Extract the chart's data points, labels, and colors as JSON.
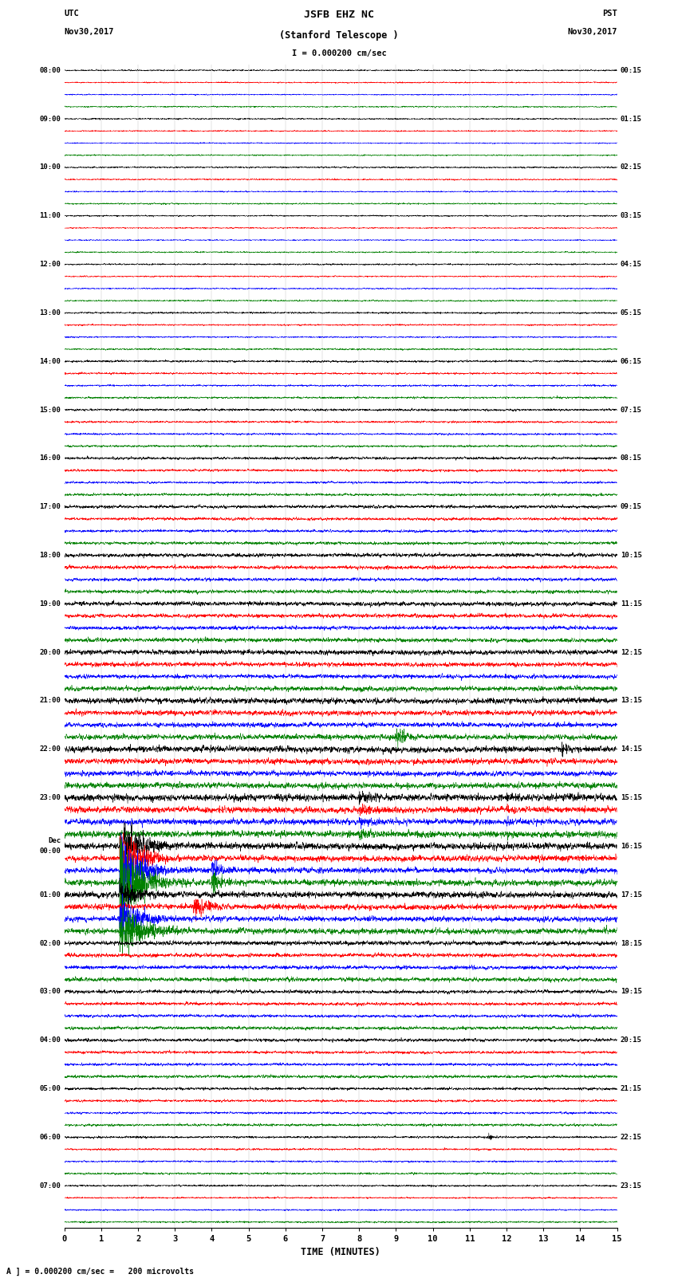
{
  "title_line1": "JSFB EHZ NC",
  "title_line2": "(Stanford Telescope )",
  "title_line3": "I = 0.000200 cm/sec",
  "left_label_top": "UTC",
  "left_label_date": "Nov30,2017",
  "right_label_top": "PST",
  "right_label_date": "Nov30,2017",
  "xlabel": "TIME (MINUTES)",
  "footer": "A ] = 0.000200 cm/sec =   200 microvolts",
  "colors": [
    "black",
    "red",
    "blue",
    "green"
  ],
  "utc_times": [
    "08:00",
    "09:00",
    "10:00",
    "11:00",
    "12:00",
    "13:00",
    "14:00",
    "15:00",
    "16:00",
    "17:00",
    "18:00",
    "19:00",
    "20:00",
    "21:00",
    "22:00",
    "23:00",
    "Dec\n00:00",
    "01:00",
    "02:00",
    "03:00",
    "04:00",
    "05:00",
    "06:00",
    "07:00"
  ],
  "pst_times": [
    "00:15",
    "01:15",
    "02:15",
    "03:15",
    "04:15",
    "05:15",
    "06:15",
    "07:15",
    "08:15",
    "09:15",
    "10:15",
    "11:15",
    "12:15",
    "13:15",
    "14:15",
    "15:15",
    "16:15",
    "17:15",
    "18:15",
    "19:15",
    "20:15",
    "21:15",
    "22:15",
    "23:15"
  ],
  "n_rows": 24,
  "n_traces_per_row": 4,
  "xmin": 0,
  "xmax": 15,
  "bg_color": "white",
  "noise_seed": 42,
  "fig_width": 8.5,
  "fig_height": 16.13,
  "dpi": 100
}
